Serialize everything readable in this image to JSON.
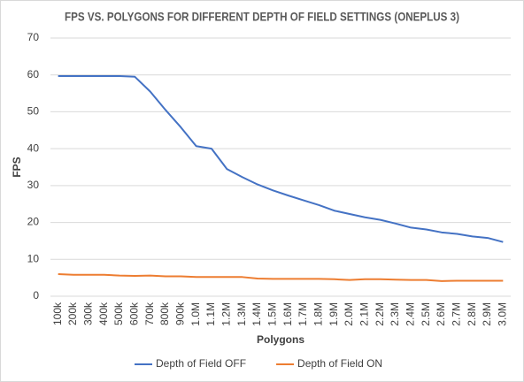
{
  "chart_data": {
    "type": "line",
    "title": "FPS VS. POLYGONS FOR DIFFERENT DEPTH OF FIELD SETTINGS (ONEPLUS 3)",
    "x_label": "Polygons",
    "y_label": "FPS",
    "categories": [
      "100k",
      "200k",
      "300k",
      "400k",
      "500k",
      "600k",
      "700k",
      "800k",
      "900k",
      "1.0M",
      "1.1M",
      "1.2M",
      "1.3M",
      "1.4M",
      "1.5M",
      "1.6M",
      "1.7M",
      "1.8M",
      "1.9M",
      "2.0M",
      "2.1M",
      "2.2M",
      "2.3M",
      "2.4M",
      "2.5M",
      "2.6M",
      "2.7M",
      "2.8M",
      "2.9M",
      "3.0M"
    ],
    "series": [
      {
        "name": "Depth of Field OFF",
        "color": "#4472c4",
        "values": [
          59.7,
          59.7,
          59.7,
          59.7,
          59.7,
          59.5,
          55.5,
          50.5,
          45.8,
          40.7,
          40.0,
          34.5,
          32.3,
          30.3,
          28.7,
          27.3,
          26.0,
          24.7,
          23.2,
          22.3,
          21.4,
          20.7,
          19.7,
          18.6,
          18.1,
          17.3,
          16.9,
          16.2,
          15.8,
          14.7
        ]
      },
      {
        "name": "Depth of Field ON",
        "color": "#ed7d31",
        "values": [
          6.0,
          5.8,
          5.8,
          5.8,
          5.6,
          5.5,
          5.6,
          5.4,
          5.4,
          5.2,
          5.2,
          5.2,
          5.2,
          4.8,
          4.7,
          4.7,
          4.7,
          4.7,
          4.6,
          4.4,
          4.6,
          4.6,
          4.5,
          4.4,
          4.4,
          4.1,
          4.2,
          4.2,
          4.2,
          4.2
        ]
      }
    ],
    "ylim": [
      0,
      70
    ],
    "yticks": [
      0,
      10,
      20,
      30,
      40,
      50,
      60,
      70
    ],
    "grid": true,
    "legend": "bottom"
  }
}
